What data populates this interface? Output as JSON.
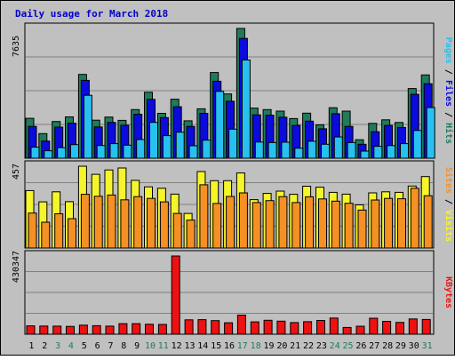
{
  "chart_data": [
    {
      "type": "bar",
      "title": "Daily usage for March 2018",
      "categories": [
        "1",
        "2",
        "3",
        "4",
        "5",
        "6",
        "7",
        "8",
        "9",
        "10",
        "11",
        "12",
        "13",
        "14",
        "15",
        "16",
        "17",
        "18",
        "19",
        "20",
        "21",
        "22",
        "23",
        "24",
        "25",
        "26",
        "27",
        "28",
        "29",
        "30",
        "31"
      ],
      "weekend_days": [
        "3",
        "4",
        "10",
        "11",
        "17",
        "18",
        "24",
        "25",
        "31"
      ],
      "ymax_label": "7635",
      "ymax": 7635,
      "grid": true,
      "legend": "right",
      "series": [
        {
          "name": "Hits",
          "color": "#1e7c5a",
          "values": [
            2350,
            1450,
            2160,
            2430,
            4930,
            2240,
            2420,
            2230,
            2860,
            3880,
            2640,
            3470,
            2200,
            2910,
            5040,
            3780,
            7635,
            2950,
            2860,
            2770,
            2330,
            2650,
            1960,
            2970,
            2770,
            1090,
            2050,
            2260,
            2100,
            4100,
            4900
          ]
        },
        {
          "name": "Files",
          "color": "#0b0bdb",
          "values": [
            1870,
            1010,
            1830,
            2060,
            4580,
            1840,
            2110,
            1940,
            2590,
            3460,
            2390,
            3030,
            1870,
            2640,
            4530,
            3350,
            7050,
            2550,
            2530,
            2410,
            1930,
            2180,
            1730,
            2620,
            1870,
            820,
            1560,
            1930,
            1810,
            3760,
            4380
          ]
        },
        {
          "name": "Pages",
          "color": "#28c0f0",
          "values": [
            650,
            440,
            620,
            800,
            3700,
            750,
            860,
            770,
            1100,
            2110,
            1330,
            1530,
            730,
            1060,
            3930,
            1710,
            5780,
            950,
            920,
            940,
            590,
            1000,
            820,
            1250,
            920,
            420,
            700,
            740,
            860,
            1630,
            2980
          ]
        }
      ]
    },
    {
      "type": "bar",
      "categories": [
        "1",
        "2",
        "3",
        "4",
        "5",
        "6",
        "7",
        "8",
        "9",
        "10",
        "11",
        "12",
        "13",
        "14",
        "15",
        "16",
        "17",
        "18",
        "19",
        "20",
        "21",
        "22",
        "23",
        "24",
        "25",
        "26",
        "27",
        "28",
        "29",
        "30",
        "31"
      ],
      "ymax_label": "457",
      "ymax": 457,
      "grid": true,
      "legend": "right",
      "series": [
        {
          "name": "Visits",
          "color": "#f5f52b",
          "values": [
            321,
            258,
            314,
            259,
            457,
            412,
            436,
            447,
            378,
            342,
            334,
            301,
            193,
            427,
            376,
            376,
            419,
            270,
            305,
            318,
            300,
            345,
            340,
            311,
            301,
            241,
            308,
            314,
            311,
            346,
            399
          ]
        },
        {
          "name": "Sites",
          "color": "#f59024",
          "values": [
            195,
            144,
            191,
            164,
            300,
            289,
            296,
            269,
            287,
            277,
            258,
            193,
            156,
            353,
            249,
            288,
            308,
            254,
            265,
            287,
            254,
            286,
            274,
            262,
            250,
            212,
            268,
            277,
            275,
            334,
            292
          ]
        }
      ]
    },
    {
      "type": "bar",
      "categories": [
        "1",
        "2",
        "3",
        "4",
        "5",
        "6",
        "7",
        "8",
        "9",
        "10",
        "11",
        "12",
        "13",
        "14",
        "15",
        "16",
        "17",
        "18",
        "19",
        "20",
        "21",
        "22",
        "23",
        "24",
        "25",
        "26",
        "27",
        "28",
        "29",
        "30",
        "31"
      ],
      "ymax_label": "430347",
      "ymax": 430347,
      "grid": true,
      "legend": "right",
      "series": [
        {
          "name": "KBytes",
          "color": "#ee1111",
          "values": [
            46000,
            45000,
            44500,
            43000,
            50000,
            47000,
            44500,
            58000,
            58000,
            55000,
            54000,
            430347,
            79000,
            80000,
            75000,
            63000,
            105000,
            68000,
            77000,
            72000,
            64000,
            69000,
            76000,
            89000,
            37000,
            44000,
            88000,
            71000,
            65000,
            84000,
            81000
          ]
        }
      ]
    }
  ]
}
